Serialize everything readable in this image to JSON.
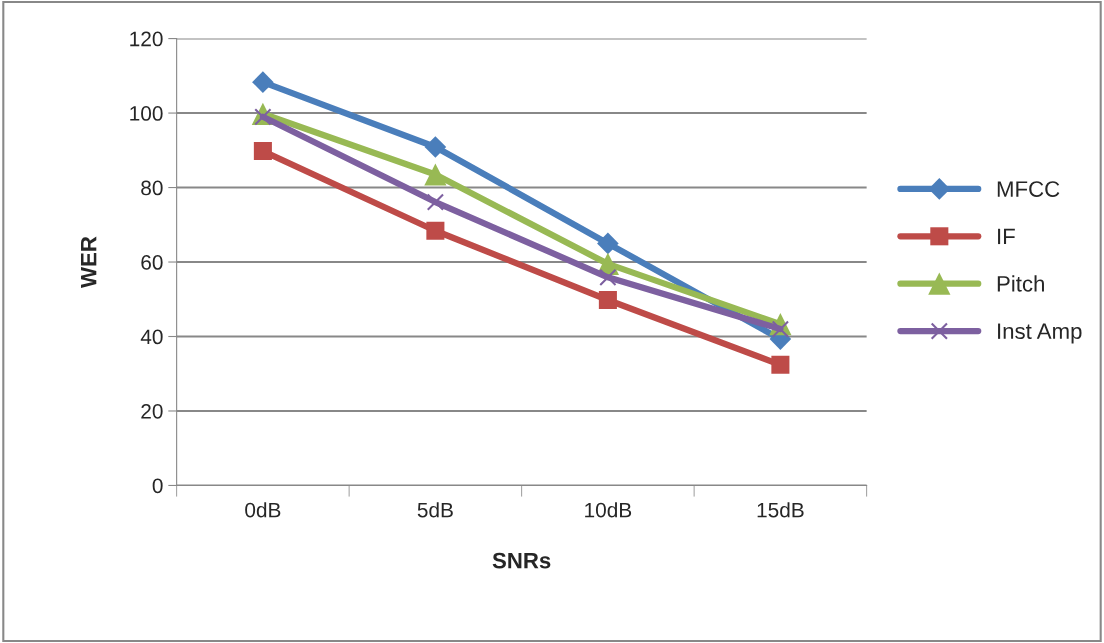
{
  "chart_data": {
    "type": "line",
    "xlabel": "SNRs",
    "ylabel": "WER",
    "categories": [
      "0dB",
      "5dB",
      "10dB",
      "15dB"
    ],
    "series": [
      {
        "name": "MFCC",
        "color": "#4a7ebb",
        "values": [
          108.3,
          90.9,
          65,
          39.3
        ],
        "marker": "diamond"
      },
      {
        "name": "IF",
        "color": "#be4b48",
        "values": [
          89.8,
          68.4,
          49.8,
          32.4
        ],
        "marker": "square"
      },
      {
        "name": "Pitch",
        "color": "#98b954",
        "values": [
          99.8,
          83.5,
          59.5,
          43.3
        ],
        "marker": "triangle"
      },
      {
        "name": "Inst Amp",
        "color": "#7d60a0",
        "values": [
          99,
          76.1,
          55.9,
          42
        ],
        "marker": "cross"
      }
    ],
    "ylim": [
      0,
      120
    ],
    "yticks": [
      0,
      20,
      40,
      60,
      80,
      100,
      120
    ],
    "grid": "y",
    "legend": "right",
    "line_style": "solid"
  }
}
